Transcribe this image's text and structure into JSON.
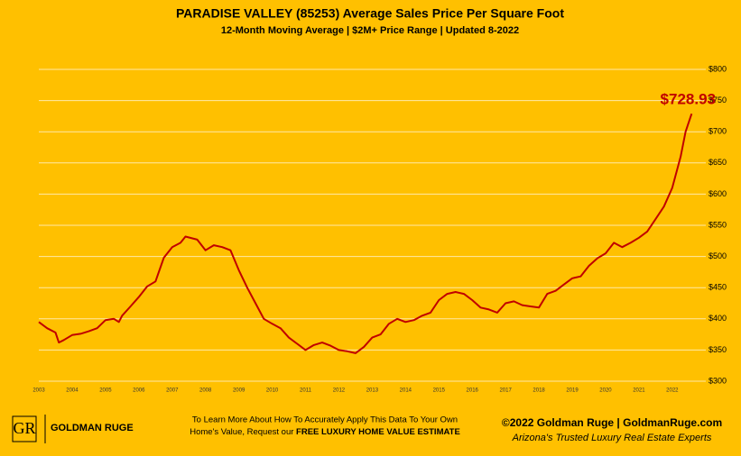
{
  "chart_data": {
    "type": "line",
    "title": "PARADISE VALLEY (85253) Average Sales Price Per Square Foot",
    "subtitle": "12-Month Moving Average | $2M+ Price Range | Updated 8-2022",
    "x": [
      2003.0,
      2003.25,
      2003.5,
      2003.6,
      2003.75,
      2004.0,
      2004.25,
      2004.5,
      2004.75,
      2005.0,
      2005.25,
      2005.4,
      2005.5,
      2005.75,
      2006.0,
      2006.25,
      2006.5,
      2006.75,
      2007.0,
      2007.25,
      2007.4,
      2007.75,
      2008.0,
      2008.25,
      2008.5,
      2008.75,
      2009.0,
      2009.25,
      2009.5,
      2009.75,
      2010.0,
      2010.25,
      2010.5,
      2010.75,
      2011.0,
      2011.25,
      2011.5,
      2011.75,
      2012.0,
      2012.25,
      2012.5,
      2012.75,
      2013.0,
      2013.25,
      2013.5,
      2013.75,
      2014.0,
      2014.25,
      2014.5,
      2014.75,
      2015.0,
      2015.25,
      2015.5,
      2015.75,
      2016.0,
      2016.25,
      2016.5,
      2016.75,
      2017.0,
      2017.25,
      2017.5,
      2017.75,
      2018.0,
      2018.25,
      2018.5,
      2018.75,
      2019.0,
      2019.25,
      2019.5,
      2019.75,
      2020.0,
      2020.25,
      2020.5,
      2020.75,
      2021.0,
      2021.25,
      2021.5,
      2021.75,
      2022.0,
      2022.25,
      2022.4,
      2022.58
    ],
    "series": [
      {
        "color": "#c00000",
        "values": [
          395,
          385,
          378,
          362,
          366,
          374,
          376,
          380,
          385,
          398,
          400,
          395,
          405,
          420,
          435,
          452,
          460,
          498,
          515,
          522,
          532,
          527,
          510,
          518,
          515,
          510,
          478,
          450,
          425,
          400,
          392,
          385,
          370,
          360,
          350,
          358,
          362,
          357,
          350,
          348,
          345,
          355,
          370,
          375,
          392,
          400,
          395,
          398,
          405,
          410,
          430,
          440,
          443,
          440,
          430,
          418,
          415,
          410,
          425,
          428,
          422,
          420,
          418,
          440,
          445,
          455,
          465,
          468,
          485,
          497,
          505,
          522,
          515,
          522,
          530,
          540,
          560,
          580,
          610,
          660,
          700,
          728.93
        ]
      }
    ],
    "annotation": "$728.93",
    "xlim": [
      2003,
      2022.6
    ],
    "xticks": [
      2003,
      2004,
      2005,
      2006,
      2007,
      2008,
      2009,
      2010,
      2011,
      2012,
      2013,
      2014,
      2015,
      2016,
      2017,
      2018,
      2019,
      2020,
      2021,
      2022
    ],
    "ylim": [
      300,
      800
    ],
    "yticks": [
      {
        "value": 300,
        "label": "$300"
      },
      {
        "value": 350,
        "label": "$350"
      },
      {
        "value": 400,
        "label": "$400"
      },
      {
        "value": 450,
        "label": "$450"
      },
      {
        "value": 500,
        "label": "$500"
      },
      {
        "value": 550,
        "label": "$550"
      },
      {
        "value": 600,
        "label": "$600"
      },
      {
        "value": 650,
        "label": "$650"
      },
      {
        "value": 700,
        "label": "$700"
      },
      {
        "value": 750,
        "label": "$750"
      },
      {
        "value": 800,
        "label": "$800"
      }
    ],
    "grid": true
  },
  "footer": {
    "logo_initials": "GR",
    "logo_name": "GOLDMAN RUGE",
    "cta_line1": "To Learn More About How To Accurately Apply This Data To Your Own",
    "cta_line2": "Home's Value, Request our ",
    "cta_bold": "FREE LUXURY HOME VALUE ESTIMATE",
    "copyright": "©2022 Goldman Ruge  |  GoldmanRuge.com",
    "tagline": "Arizona's Trusted Luxury Real Estate Experts"
  }
}
